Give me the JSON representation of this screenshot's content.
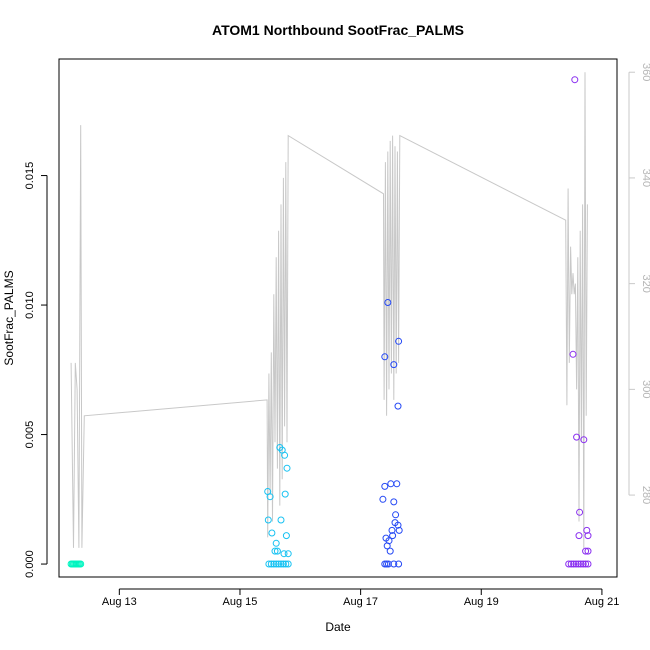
{
  "chart_data": {
    "type": "scatter",
    "title": "ATOM1 Northbound SootFrac_PALMS",
    "xlabel": "Date",
    "ylabel": "SootFrac_PALMS",
    "xlim": [
      12.0,
      21.25
    ],
    "ylim": [
      -0.0005,
      0.0195
    ],
    "yticks": [
      0.0,
      0.005,
      0.01,
      0.015
    ],
    "ytick_labels": [
      "0.000",
      "0.005",
      "0.010",
      "0.015"
    ],
    "xticks": [
      13,
      15,
      17,
      19,
      21
    ],
    "xtick_labels": [
      "Aug 13",
      "Aug 15",
      "Aug 17",
      "Aug 19",
      "Aug 21"
    ],
    "secondary_y": {
      "ylim": [
        264.5,
        362.5
      ],
      "ticks": [
        280,
        300,
        320,
        340,
        360
      ],
      "tick_labels": [
        "280",
        "300",
        "320",
        "340",
        "360"
      ],
      "color": "#c8c8c8"
    },
    "grid": false,
    "series": [
      {
        "color": "#00f5c0",
        "points": [
          [
            12.2,
            0
          ],
          [
            12.22,
            0
          ],
          [
            12.24,
            0
          ],
          [
            12.26,
            0
          ],
          [
            12.28,
            0
          ],
          [
            12.3,
            0
          ],
          [
            12.32,
            0
          ],
          [
            12.34,
            0
          ],
          [
            12.36,
            0
          ]
        ]
      },
      {
        "color": "#18c2f2",
        "points": [
          [
            15.46,
            0.0028
          ],
          [
            15.5,
            0.0026
          ],
          [
            15.47,
            0.0017
          ],
          [
            15.53,
            0.0012
          ],
          [
            15.6,
            0.0008
          ],
          [
            15.58,
            0.0005
          ],
          [
            15.62,
            0.0005
          ],
          [
            15.66,
            0.0045
          ],
          [
            15.7,
            0.0044
          ],
          [
            15.74,
            0.0042
          ],
          [
            15.68,
            0.0017
          ],
          [
            15.78,
            0.0037
          ],
          [
            15.75,
            0.0027
          ],
          [
            15.77,
            0.0011
          ],
          [
            15.8,
            0.0004
          ],
          [
            15.73,
            0.0004
          ],
          [
            15.48,
            0
          ],
          [
            15.52,
            0
          ],
          [
            15.56,
            0
          ],
          [
            15.6,
            0
          ],
          [
            15.64,
            0
          ],
          [
            15.68,
            0
          ],
          [
            15.72,
            0
          ],
          [
            15.76,
            0
          ],
          [
            15.8,
            0
          ]
        ]
      },
      {
        "color": "#2448f5",
        "points": [
          [
            17.37,
            0.0025
          ],
          [
            17.4,
            0.003
          ],
          [
            17.4,
            0.008
          ],
          [
            17.45,
            0.0101
          ],
          [
            17.55,
            0.0077
          ],
          [
            17.63,
            0.0086
          ],
          [
            17.62,
            0.0061
          ],
          [
            17.42,
            0.001
          ],
          [
            17.44,
            0.0007
          ],
          [
            17.47,
            0.0009
          ],
          [
            17.5,
            0.0031
          ],
          [
            17.52,
            0.0013
          ],
          [
            17.55,
            0.0024
          ],
          [
            17.57,
            0.0016
          ],
          [
            17.58,
            0.0019
          ],
          [
            17.6,
            0.0031
          ],
          [
            17.62,
            0.0015
          ],
          [
            17.64,
            0.0013
          ],
          [
            17.53,
            0.0011
          ],
          [
            17.49,
            0.0005
          ],
          [
            17.4,
            0
          ],
          [
            17.43,
            0
          ],
          [
            17.46,
            0
          ],
          [
            17.55,
            0
          ],
          [
            17.63,
            0
          ]
        ]
      },
      {
        "color": "#8a2ff0",
        "points": [
          [
            20.55,
            0.0187
          ],
          [
            20.52,
            0.0081
          ],
          [
            20.58,
            0.0049
          ],
          [
            20.63,
            0.002
          ],
          [
            20.7,
            0.0048
          ],
          [
            20.75,
            0.0013
          ],
          [
            20.77,
            0.0011
          ],
          [
            20.62,
            0.0011
          ],
          [
            20.73,
            0.0005
          ],
          [
            20.77,
            0.0005
          ],
          [
            20.45,
            0
          ],
          [
            20.49,
            0
          ],
          [
            20.53,
            0
          ],
          [
            20.57,
            0
          ],
          [
            20.61,
            0
          ],
          [
            20.65,
            0
          ],
          [
            20.69,
            0
          ],
          [
            20.73,
            0
          ],
          [
            20.77,
            0
          ]
        ]
      }
    ],
    "overlay_line": {
      "color": "#c8c8c8",
      "values_secondary": [
        [
          12.2,
          305
        ],
        [
          12.24,
          270
        ],
        [
          12.27,
          305
        ],
        [
          12.3,
          300
        ],
        [
          12.33,
          270
        ],
        [
          12.36,
          350
        ],
        [
          12.38,
          270
        ],
        [
          12.42,
          295
        ],
        [
          15.45,
          298
        ],
        [
          15.46,
          272
        ],
        [
          15.48,
          303
        ],
        [
          15.5,
          280
        ],
        [
          15.52,
          307
        ],
        [
          15.54,
          275
        ],
        [
          15.56,
          318
        ],
        [
          15.58,
          290
        ],
        [
          15.6,
          325
        ],
        [
          15.62,
          285
        ],
        [
          15.64,
          330
        ],
        [
          15.66,
          278
        ],
        [
          15.68,
          335
        ],
        [
          15.7,
          283
        ],
        [
          15.72,
          340
        ],
        [
          15.74,
          293
        ],
        [
          15.76,
          343
        ],
        [
          15.78,
          290
        ],
        [
          15.8,
          348
        ],
        [
          17.38,
          337
        ],
        [
          17.39,
          298
        ],
        [
          17.41,
          343
        ],
        [
          17.43,
          295
        ],
        [
          17.45,
          345
        ],
        [
          17.47,
          300
        ],
        [
          17.49,
          347
        ],
        [
          17.51,
          303
        ],
        [
          17.53,
          348
        ],
        [
          17.55,
          298
        ],
        [
          17.57,
          346
        ],
        [
          17.59,
          303
        ],
        [
          17.61,
          345
        ],
        [
          17.63,
          305
        ],
        [
          17.65,
          348
        ],
        [
          20.4,
          332
        ],
        [
          20.42,
          297
        ],
        [
          20.44,
          338
        ],
        [
          20.46,
          305
        ],
        [
          20.48,
          327
        ],
        [
          20.5,
          318
        ],
        [
          20.52,
          322
        ],
        [
          20.54,
          318
        ],
        [
          20.56,
          320
        ],
        [
          20.58,
          300
        ],
        [
          20.6,
          325
        ],
        [
          20.62,
          275
        ],
        [
          20.64,
          330
        ],
        [
          20.66,
          290
        ],
        [
          20.68,
          335
        ],
        [
          20.7,
          270
        ],
        [
          20.72,
          360
        ],
        [
          20.74,
          295
        ],
        [
          20.76,
          335
        ]
      ]
    }
  }
}
